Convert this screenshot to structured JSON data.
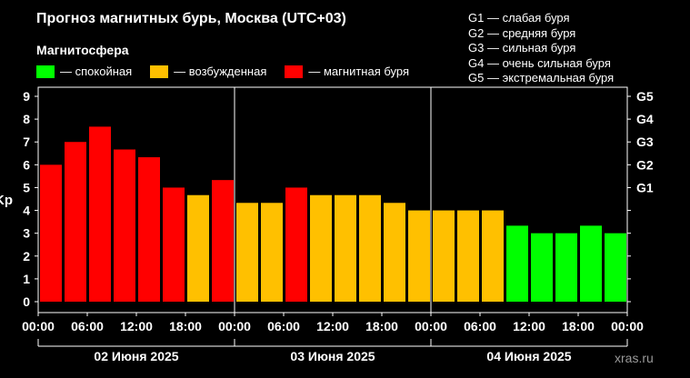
{
  "header": {
    "title": "Прогноз магнитных бурь, Москва (UTC+03)",
    "subtitle": "Магнитосфера",
    "legend": [
      {
        "label": "— спокойная",
        "color": "#00ff00"
      },
      {
        "label": "— возбужденная",
        "color": "#ffc000"
      },
      {
        "label": "— магнитная буря",
        "color": "#ff0000"
      }
    ],
    "g_scale": [
      "G1 — слабая буря",
      "G2 — средняя буря",
      "G3 — сильная буря",
      "G4 — очень сильная буря",
      "G5 — экстремальная буря"
    ],
    "watermark": "xras.ru"
  },
  "chart_data": {
    "type": "bar",
    "ylabel": "Kp",
    "ylim": [
      0,
      9
    ],
    "yticks": [
      0,
      1,
      2,
      3,
      4,
      5,
      6,
      7,
      8,
      9
    ],
    "right_ticks": [
      {
        "kp": 5,
        "label": "G1"
      },
      {
        "kp": 6,
        "label": "G2"
      },
      {
        "kp": 7,
        "label": "G3"
      },
      {
        "kp": 8,
        "label": "G4"
      },
      {
        "kp": 9,
        "label": "G5"
      }
    ],
    "xtick_labels": [
      "00:00",
      "06:00",
      "12:00",
      "18:00",
      "00:00",
      "06:00",
      "12:00",
      "18:00",
      "00:00",
      "06:00",
      "12:00",
      "18:00",
      "00:00"
    ],
    "days": [
      "02 Июня 2025",
      "03 Июня 2025",
      "04 Июня 2025"
    ],
    "bars_per_day": 8,
    "values": [
      6.0,
      7.0,
      7.67,
      6.67,
      6.33,
      5.0,
      4.67,
      5.33,
      4.33,
      4.33,
      5.0,
      4.67,
      4.67,
      4.67,
      4.33,
      4.0,
      4.0,
      4.0,
      4.0,
      3.33,
      3.0,
      3.0,
      3.33,
      3.0
    ],
    "colors": {
      "quiet": "#00ff00",
      "active": "#ffc000",
      "storm": "#ff0000"
    },
    "grid": false
  }
}
